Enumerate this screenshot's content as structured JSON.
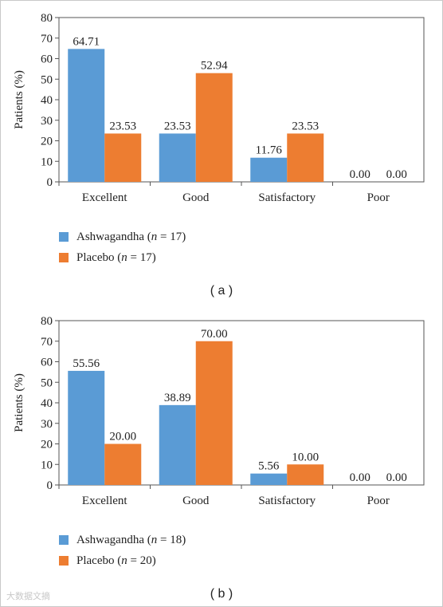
{
  "colors": {
    "ashwagandha": "#5a9bd5",
    "placebo": "#ed7d31",
    "axis": "#555555",
    "frame": "#555555"
  },
  "panels": [
    {
      "panel_label": "( a )",
      "legend": [
        {
          "prefix": "Ashwagandha (",
          "n": "n",
          "suffix": " = 17)"
        },
        {
          "prefix": "Placebo (",
          "n": "n",
          "suffix": " = 17)"
        }
      ]
    },
    {
      "panel_label": "( b )",
      "legend": [
        {
          "prefix": "Ashwagandha (",
          "n": "n",
          "suffix": " = 18)"
        },
        {
          "prefix": "Placebo (",
          "n": "n",
          "suffix": " = 20)"
        }
      ]
    }
  ],
  "chart_data": [
    {
      "type": "bar",
      "categories": [
        "Excellent",
        "Good",
        "Satisfactory",
        "Poor"
      ],
      "series": [
        {
          "name": "Ashwagandha (n = 17)",
          "values": [
            64.71,
            23.53,
            11.76,
            0.0
          ],
          "labels": [
            "64.71",
            "23.53",
            "11.76",
            "0.00"
          ]
        },
        {
          "name": "Placebo (n = 17)",
          "values": [
            23.53,
            52.94,
            23.53,
            0.0
          ],
          "labels": [
            "23.53",
            "52.94",
            "23.53",
            "0.00"
          ]
        }
      ],
      "ylabel": "Patients (%)",
      "ylim": [
        0,
        80
      ],
      "yticks": [
        "0",
        "10",
        "20",
        "30",
        "40",
        "50",
        "60",
        "70",
        "80"
      ],
      "grid": false,
      "legend_position": "bottom-left"
    },
    {
      "type": "bar",
      "categories": [
        "Excellent",
        "Good",
        "Satisfactory",
        "Poor"
      ],
      "series": [
        {
          "name": "Ashwagandha (n = 18)",
          "values": [
            55.56,
            38.89,
            5.56,
            0.0
          ],
          "labels": [
            "55.56",
            "38.89",
            "5.56",
            "0.00"
          ]
        },
        {
          "name": "Placebo (n = 20)",
          "values": [
            20.0,
            70.0,
            10.0,
            0.0
          ],
          "labels": [
            "20.00",
            "70.00",
            "10.00",
            "0.00"
          ]
        }
      ],
      "ylabel": "Patients (%)",
      "ylim": [
        0,
        80
      ],
      "yticks": [
        "0",
        "10",
        "20",
        "30",
        "40",
        "50",
        "60",
        "70",
        "80"
      ],
      "grid": false,
      "legend_position": "bottom-left"
    }
  ],
  "watermark": "大数据文摘"
}
